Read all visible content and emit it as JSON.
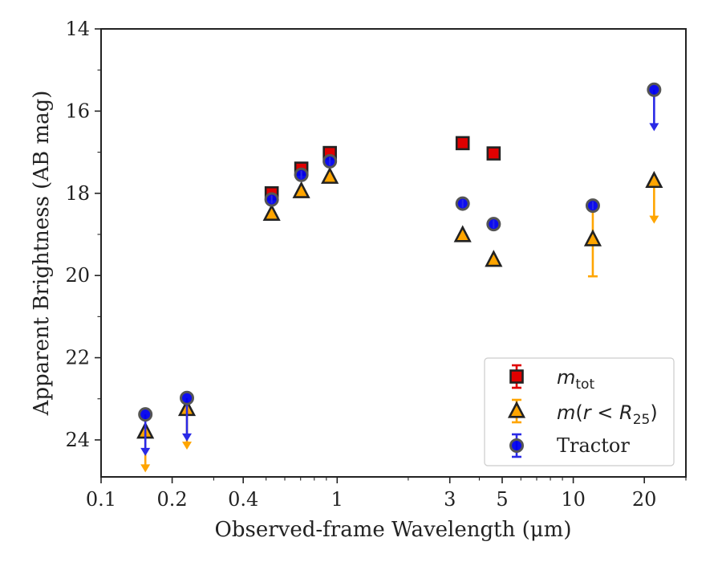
{
  "chart_data": {
    "type": "scatter",
    "xlabel_prefix": "Observed-frame Wavelength (",
    "xlabel_unit": "μm",
    "xlabel_suffix": ")",
    "ylabel": "Apparent Brightness (AB mag)",
    "x_scale": "log",
    "xlim": [
      0.1,
      30
    ],
    "ylim": [
      24.9,
      14
    ],
    "y_inverted": true,
    "x_ticks": [
      {
        "value": 0.1,
        "label": "0.1"
      },
      {
        "value": 0.2,
        "label": "0.2"
      },
      {
        "value": 0.4,
        "label": "0.4"
      },
      {
        "value": 1,
        "label": "1"
      },
      {
        "value": 3,
        "label": "3"
      },
      {
        "value": 5,
        "label": "5"
      },
      {
        "value": 10,
        "label": "10"
      },
      {
        "value": 20,
        "label": "20"
      }
    ],
    "y_ticks": [
      {
        "value": 14,
        "label": "14"
      },
      {
        "value": 16,
        "label": "16"
      },
      {
        "value": 18,
        "label": "18"
      },
      {
        "value": 20,
        "label": "20"
      },
      {
        "value": 22,
        "label": "22"
      },
      {
        "value": 24,
        "label": "24"
      }
    ],
    "grid": false,
    "legend_position": "bottom-right",
    "series": [
      {
        "key": "mtot",
        "legend_base": "m",
        "legend_sub": "tot",
        "marker": "square",
        "face_color": "#e00000",
        "error_color": "#e00000",
        "points": [
          {
            "x": 0.528,
            "y": 18.0,
            "yerr": 0.05
          },
          {
            "x": 0.705,
            "y": 17.4,
            "yerr": 0.05
          },
          {
            "x": 0.931,
            "y": 17.02,
            "yerr": 0.05
          },
          {
            "x": 3.4,
            "y": 16.78,
            "yerr": 0.05
          },
          {
            "x": 4.6,
            "y": 17.03,
            "yerr": 0.05
          }
        ]
      },
      {
        "key": "mr25",
        "legend_base": "m",
        "legend_paren_open": "(",
        "legend_var": "r",
        "legend_op": " < ",
        "legend_var2": "R",
        "legend_sub": "25",
        "legend_paren_close": ")",
        "marker": "triangle",
        "face_color": "#ffa500",
        "error_color": "#ffa500",
        "points": [
          {
            "x": 0.154,
            "y": 23.8,
            "upper_limit": true,
            "limit_to": 24.75
          },
          {
            "x": 0.231,
            "y": 23.25,
            "upper_limit": true,
            "limit_to": 24.2
          },
          {
            "x": 0.528,
            "y": 18.5,
            "yerr": 0.05
          },
          {
            "x": 0.705,
            "y": 17.95,
            "yerr": 0.05
          },
          {
            "x": 0.931,
            "y": 17.6,
            "yerr": 0.05
          },
          {
            "x": 3.4,
            "y": 19.02,
            "yerr": 0.05
          },
          {
            "x": 4.6,
            "y": 19.62,
            "yerr": 0.05
          },
          {
            "x": 12.1,
            "y": 19.12,
            "yerr_low": 0.9,
            "yerr_high": 0.9
          },
          {
            "x": 22.0,
            "y": 17.7,
            "upper_limit": true,
            "limit_to": 18.7
          }
        ]
      },
      {
        "key": "tractor",
        "legend_base": "Tractor",
        "marker": "circle",
        "face_color": "#0000ee",
        "error_color": "#2a2ae6",
        "points": [
          {
            "x": 0.154,
            "y": 23.38,
            "upper_limit": true,
            "limit_to": 24.35
          },
          {
            "x": 0.231,
            "y": 22.98,
            "upper_limit": true,
            "limit_to": 24.0
          },
          {
            "x": 0.528,
            "y": 18.15,
            "yerr": 0.05
          },
          {
            "x": 0.705,
            "y": 17.55,
            "yerr": 0.05
          },
          {
            "x": 0.931,
            "y": 17.22,
            "yerr": 0.05
          },
          {
            "x": 3.4,
            "y": 18.25,
            "yerr": 0.05
          },
          {
            "x": 4.6,
            "y": 18.75,
            "yerr": 0.05
          },
          {
            "x": 12.1,
            "y": 18.3,
            "yerr": 0.05
          },
          {
            "x": 22.0,
            "y": 15.48,
            "upper_limit": true,
            "limit_to": 16.45
          }
        ]
      }
    ]
  }
}
